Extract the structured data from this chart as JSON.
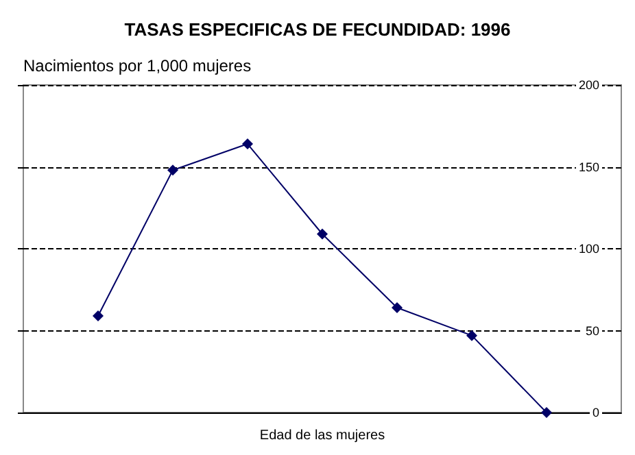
{
  "chart_data": {
    "type": "line",
    "title": "TASAS ESPECIFICAS DE FECUNDIDAD: 1996",
    "ylabel": "Nacimientos por 1,000 mujeres",
    "xlabel": "Edad de las mujeres",
    "categories": [
      null,
      null,
      null,
      null,
      null,
      null,
      null
    ],
    "series": [
      {
        "color": "#000066",
        "values": [
          59,
          148,
          164,
          109,
          64,
          47,
          0
        ]
      }
    ],
    "ylim": [
      0,
      200
    ],
    "yticks": [
      0,
      50,
      100,
      150,
      200
    ],
    "grid": "y",
    "marker": "diamond",
    "line_style": "solid"
  }
}
